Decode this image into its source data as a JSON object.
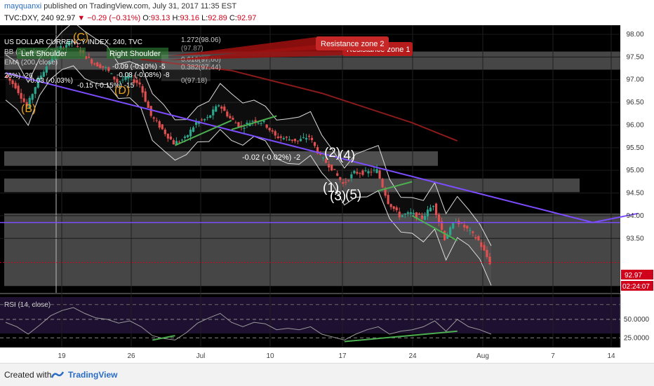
{
  "header": {
    "author": "mayquanxi",
    "published_text": "published on TradingView.com, July 31, 2017 11:35 EST",
    "symbol": "TVC:DXY, 240",
    "last": "92.97",
    "change": "−0.29 (−0.31%)",
    "ohlc": [
      {
        "label": "O:",
        "value": "93.13"
      },
      {
        "label": "H:",
        "value": "93.16"
      },
      {
        "label": "L:",
        "value": "92.89"
      },
      {
        "label": "C:",
        "value": "92.97"
      }
    ]
  },
  "footer": {
    "created": "Created with",
    "brand": "TradingView"
  },
  "legend": {
    "title": "US DOLLAR CURRENCY INDEX, 240, TVC",
    "bb": "BB (20, close, 2)",
    "ema": "EMA (200, close)",
    "rsi": "RSI (14, close)"
  },
  "annotations": {
    "resistance_2": "Resistance zone 2",
    "resistance_1": "Resistance zone 1",
    "left_shoulder": "Left Shoulder",
    "right_shoulder": "Right Shoulder",
    "wave_labels": [
      {
        "text": "(C)",
        "color": "#e8a020"
      },
      {
        "text": "(B)",
        "color": "#e8a020"
      },
      {
        "text": "(D)",
        "color": "#e8a020"
      },
      {
        "text": "(2)",
        "color": "#ffffff"
      },
      {
        "text": "(4)",
        "color": "#ffffff"
      },
      {
        "text": "(1)",
        "color": "#ffffff"
      },
      {
        "text": "(3)",
        "color": "#ffffff"
      },
      {
        "text": "(5)",
        "color": "#ffffff"
      }
    ],
    "measurements": [
      "-0.09 (-0.10%) -5",
      "-0.08 (-0.08%) -8",
      "-0.02 (-0.02%) -2",
      "-0.15 (-0.15%) -15",
      "-0.03 (-0.03%)",
      "26%) -26"
    ],
    "fib_levels": [
      "1.272(98.06)",
      "(97.87)",
      "0.618(97.60)",
      "0.382(97.44)",
      "0(97.18)"
    ]
  },
  "price_badge": {
    "value": "92.97",
    "timer": "02:24:07",
    "color": "#d0021b"
  },
  "chart_data": {
    "type": "candlestick",
    "title": "US DOLLAR CURRENCY INDEX, 240, TVC",
    "x_ticks": [
      "19",
      "26",
      "Jul",
      "10",
      "17",
      "24",
      "Aug",
      "7",
      "14"
    ],
    "price_axis": {
      "ticks": [
        "98.00",
        "97.50",
        "97.00",
        "96.50",
        "96.00",
        "95.50",
        "95.00",
        "94.50",
        "94.00",
        "93.50"
      ],
      "ylim": [
        92.3,
        98.2
      ]
    },
    "rsi_axis": {
      "ticks": [
        "50.0000",
        "25.0000"
      ],
      "ylim": [
        12,
        84
      ]
    },
    "price_path": [
      {
        "x": 0,
        "y": 97.1
      },
      {
        "x": 1,
        "y": 96.85
      },
      {
        "x": 2,
        "y": 96.4
      },
      {
        "x": 3,
        "y": 97.0
      },
      {
        "x": 4,
        "y": 97.4
      },
      {
        "x": 5,
        "y": 97.7
      },
      {
        "x": 6,
        "y": 97.85
      },
      {
        "x": 7,
        "y": 97.55
      },
      {
        "x": 8,
        "y": 97.35
      },
      {
        "x": 9,
        "y": 97.25
      },
      {
        "x": 10,
        "y": 96.95
      },
      {
        "x": 11,
        "y": 97.05
      },
      {
        "x": 12,
        "y": 96.9
      },
      {
        "x": 13,
        "y": 96.2
      },
      {
        "x": 14,
        "y": 95.9
      },
      {
        "x": 15,
        "y": 95.6
      },
      {
        "x": 16,
        "y": 95.7
      },
      {
        "x": 17,
        "y": 96.05
      },
      {
        "x": 18,
        "y": 96.15
      },
      {
        "x": 19,
        "y": 96.45
      },
      {
        "x": 20,
        "y": 96.15
      },
      {
        "x": 21,
        "y": 95.95
      },
      {
        "x": 22,
        "y": 96.1
      },
      {
        "x": 23,
        "y": 96.05
      },
      {
        "x": 24,
        "y": 95.75
      },
      {
        "x": 25,
        "y": 95.7
      },
      {
        "x": 26,
        "y": 95.65
      },
      {
        "x": 27,
        "y": 95.75
      },
      {
        "x": 28,
        "y": 95.3
      },
      {
        "x": 29,
        "y": 95.05
      },
      {
        "x": 30,
        "y": 94.7
      },
      {
        "x": 31,
        "y": 94.95
      },
      {
        "x": 32,
        "y": 94.95
      },
      {
        "x": 33,
        "y": 95.0
      },
      {
        "x": 34,
        "y": 94.3
      },
      {
        "x": 35,
        "y": 94.0
      },
      {
        "x": 36,
        "y": 94.05
      },
      {
        "x": 37,
        "y": 93.95
      },
      {
        "x": 38,
        "y": 94.25
      },
      {
        "x": 39,
        "y": 93.5
      },
      {
        "x": 40,
        "y": 93.9
      },
      {
        "x": 41,
        "y": 93.7
      },
      {
        "x": 42,
        "y": 93.45
      },
      {
        "x": 43,
        "y": 92.97
      }
    ],
    "rsi_path": [
      {
        "x": 0,
        "y": 46
      },
      {
        "x": 1,
        "y": 40
      },
      {
        "x": 2,
        "y": 30
      },
      {
        "x": 3,
        "y": 42
      },
      {
        "x": 4,
        "y": 55
      },
      {
        "x": 5,
        "y": 62
      },
      {
        "x": 6,
        "y": 66
      },
      {
        "x": 7,
        "y": 58
      },
      {
        "x": 8,
        "y": 52
      },
      {
        "x": 9,
        "y": 50
      },
      {
        "x": 10,
        "y": 45
      },
      {
        "x": 11,
        "y": 48
      },
      {
        "x": 12,
        "y": 40
      },
      {
        "x": 13,
        "y": 28
      },
      {
        "x": 14,
        "y": 24
      },
      {
        "x": 15,
        "y": 22
      },
      {
        "x": 16,
        "y": 32
      },
      {
        "x": 17,
        "y": 45
      },
      {
        "x": 18,
        "y": 52
      },
      {
        "x": 19,
        "y": 58
      },
      {
        "x": 20,
        "y": 46
      },
      {
        "x": 21,
        "y": 40
      },
      {
        "x": 22,
        "y": 46
      },
      {
        "x": 23,
        "y": 44
      },
      {
        "x": 24,
        "y": 36
      },
      {
        "x": 25,
        "y": 38
      },
      {
        "x": 26,
        "y": 36
      },
      {
        "x": 27,
        "y": 40
      },
      {
        "x": 28,
        "y": 30
      },
      {
        "x": 29,
        "y": 26
      },
      {
        "x": 30,
        "y": 22
      },
      {
        "x": 31,
        "y": 30
      },
      {
        "x": 32,
        "y": 36
      },
      {
        "x": 33,
        "y": 40
      },
      {
        "x": 34,
        "y": 30
      },
      {
        "x": 35,
        "y": 34
      },
      {
        "x": 36,
        "y": 36
      },
      {
        "x": 37,
        "y": 40
      },
      {
        "x": 38,
        "y": 48
      },
      {
        "x": 39,
        "y": 34
      },
      {
        "x": 40,
        "y": 50
      },
      {
        "x": 41,
        "y": 40
      },
      {
        "x": 42,
        "y": 36
      },
      {
        "x": 43,
        "y": 30
      }
    ],
    "ema200": [
      {
        "x": 12,
        "y": 97.45
      },
      {
        "x": 20,
        "y": 97.2
      },
      {
        "x": 28,
        "y": 96.7
      },
      {
        "x": 36,
        "y": 96.05
      },
      {
        "x": 40,
        "y": 95.65
      }
    ],
    "trendline": [
      {
        "x": 0,
        "y": 97.15
      },
      {
        "x": 52,
        "y": 93.85
      },
      {
        "x": 56,
        "y": 94.05
      }
    ],
    "horizontal_line": {
      "y": 93.85
    },
    "zones": [
      {
        "y1": 97.62,
        "y2": 97.22
      },
      {
        "y1": 95.42,
        "y2": 95.1
      },
      {
        "y1": 94.82,
        "y2": 94.52
      },
      {
        "y1": 94.05,
        "y2": 92.45
      }
    ],
    "colors": {
      "background": "#000000",
      "up": "#2ca58d",
      "down": "#e05050",
      "trend": "#7c4dff",
      "ema": "#8b1a1a",
      "highlight": "#4caf50",
      "zone": "#808080"
    }
  }
}
